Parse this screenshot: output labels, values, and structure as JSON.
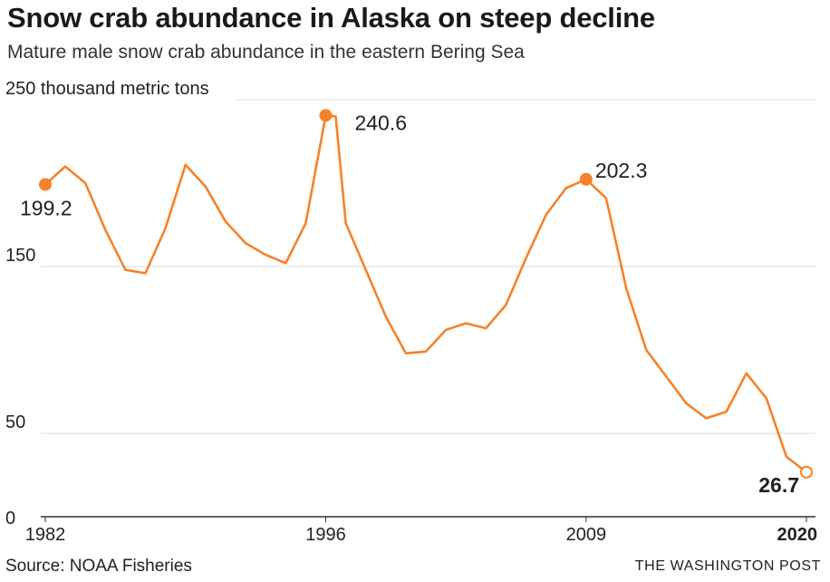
{
  "header": {
    "title": "Snow crab abundance in Alaska on steep decline",
    "subtitle": "Mature male snow crab abundance in the eastern Bering Sea"
  },
  "footer": {
    "source": "Source: NOAA Fisheries",
    "credit": "THE WASHINGTON POST"
  },
  "colors": {
    "line": "#f5822a",
    "grid": "#dddddd",
    "axis": "#333333"
  },
  "chart_data": {
    "type": "line",
    "title": "Snow crab abundance in Alaska on steep decline",
    "subtitle": "Mature male snow crab abundance in the eastern Bering Sea",
    "unit_label": "250 thousand metric tons",
    "ylim": [
      0,
      250
    ],
    "xlim": [
      1982,
      2020
    ],
    "y_ticks": [
      {
        "value": 250,
        "label": "250 thousand metric tons"
      },
      {
        "value": 150,
        "label": "150"
      },
      {
        "value": 50,
        "label": "50"
      },
      {
        "value": 0,
        "label": "0"
      }
    ],
    "x_ticks": [
      {
        "value": 1982,
        "label": "1982",
        "bold": false
      },
      {
        "value": 1996,
        "label": "1996",
        "bold": false
      },
      {
        "value": 2009,
        "label": "2009",
        "bold": false
      },
      {
        "value": 2020,
        "label": "2020",
        "bold": true
      }
    ],
    "grid": true,
    "legend": "none",
    "series": [
      {
        "points": [
          [
            1982,
            199.2
          ],
          [
            1983,
            210
          ],
          [
            1984,
            200
          ],
          [
            1985,
            172
          ],
          [
            1986,
            148
          ],
          [
            1987,
            146
          ],
          [
            1988,
            173
          ],
          [
            1989,
            211
          ],
          [
            1990,
            198
          ],
          [
            1991,
            177
          ],
          [
            1992,
            164
          ],
          [
            1993,
            157
          ],
          [
            1994,
            152
          ],
          [
            1995,
            176
          ],
          [
            1996,
            240.6
          ],
          [
            1996.5,
            240
          ],
          [
            1997,
            176
          ],
          [
            1998,
            148
          ],
          [
            1999,
            120
          ],
          [
            2000,
            98
          ],
          [
            2001,
            99
          ],
          [
            2002,
            112
          ],
          [
            2003,
            116
          ],
          [
            2004,
            113
          ],
          [
            2005,
            127
          ],
          [
            2006,
            155
          ],
          [
            2007,
            181
          ],
          [
            2008,
            197
          ],
          [
            2009,
            202.3
          ],
          [
            2010,
            191
          ],
          [
            2011,
            137
          ],
          [
            2012,
            100
          ],
          [
            2013,
            84
          ],
          [
            2014,
            68
          ],
          [
            2015,
            59
          ],
          [
            2016,
            63
          ],
          [
            2017,
            86
          ],
          [
            2018,
            71
          ],
          [
            2019,
            36
          ],
          [
            2020,
            26.7
          ]
        ]
      }
    ],
    "annotations": [
      {
        "x": 1982,
        "y": 199.2,
        "label": "199.2",
        "bold": false,
        "marker": "filled"
      },
      {
        "x": 1996,
        "y": 240.6,
        "label": "240.6",
        "bold": false,
        "marker": "filled"
      },
      {
        "x": 2009,
        "y": 202.3,
        "label": "202.3",
        "bold": false,
        "marker": "filled"
      },
      {
        "x": 2020,
        "y": 26.7,
        "label": "26.7",
        "bold": true,
        "marker": "hollow"
      }
    ]
  }
}
